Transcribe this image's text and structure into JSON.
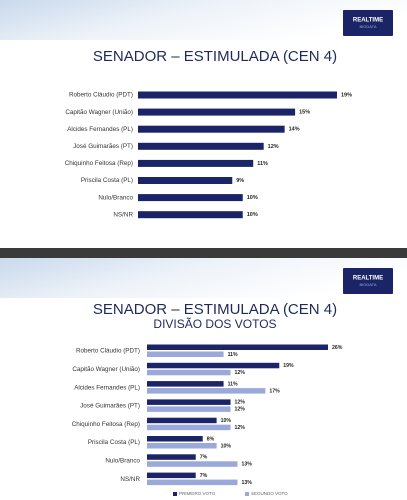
{
  "chart_data": [
    {
      "type": "bar",
      "orientation": "horizontal",
      "title": "SENADOR – ESTIMULADA (CEN 4)",
      "logo": {
        "name": "REALTIME",
        "sub": "BIGDATA"
      },
      "categories": [
        "Roberto Cláudio (PDT)",
        "Capitão Wagner (União)",
        "Alcides Fernandes (PL)",
        "José Guimarães (PT)",
        "Chiquinho Feitosa (Rep)",
        "Priscila Costa (PL)",
        "Nulo/Branco",
        "NS/NR"
      ],
      "values": [
        19,
        15,
        14,
        12,
        11,
        9,
        10,
        10
      ],
      "value_labels": [
        "19%",
        "15%",
        "14%",
        "12%",
        "11%",
        "9%",
        "10%",
        "10%"
      ],
      "color": "#1b2466"
    },
    {
      "type": "grouped-bar",
      "orientation": "horizontal",
      "title": "SENADOR – ESTIMULADA (CEN 4)",
      "subtitle": "DIVISÃO DOS VOTOS",
      "logo": {
        "name": "REALTIME",
        "sub": "BIGDATA"
      },
      "categories": [
        "Roberto Cláudio (PDT)",
        "Capitão Wagner (União)",
        "Alcides Fernandes (PL)",
        "José Guimarães (PT)",
        "Chiquinho Feitosa (Rep)",
        "Priscila Costa (PL)",
        "Nulo/Branco",
        "NS/NR"
      ],
      "series": [
        {
          "name": "PRIMEIRO VOTO",
          "color": "#1b2466",
          "values": [
            26,
            19,
            11,
            12,
            10,
            8,
            7,
            7
          ],
          "value_labels": [
            "26%",
            "19%",
            "11%",
            "12%",
            "10%",
            "8%",
            "7%",
            "7%"
          ]
        },
        {
          "name": "SEGUNDO VOTO",
          "color": "#9aa9d9",
          "values": [
            11,
            12,
            17,
            12,
            12,
            10,
            13,
            13
          ],
          "value_labels": [
            "11%",
            "12%",
            "17%",
            "12%",
            "12%",
            "10%",
            "13%",
            "13%"
          ]
        }
      ],
      "legend": "bottom"
    }
  ]
}
